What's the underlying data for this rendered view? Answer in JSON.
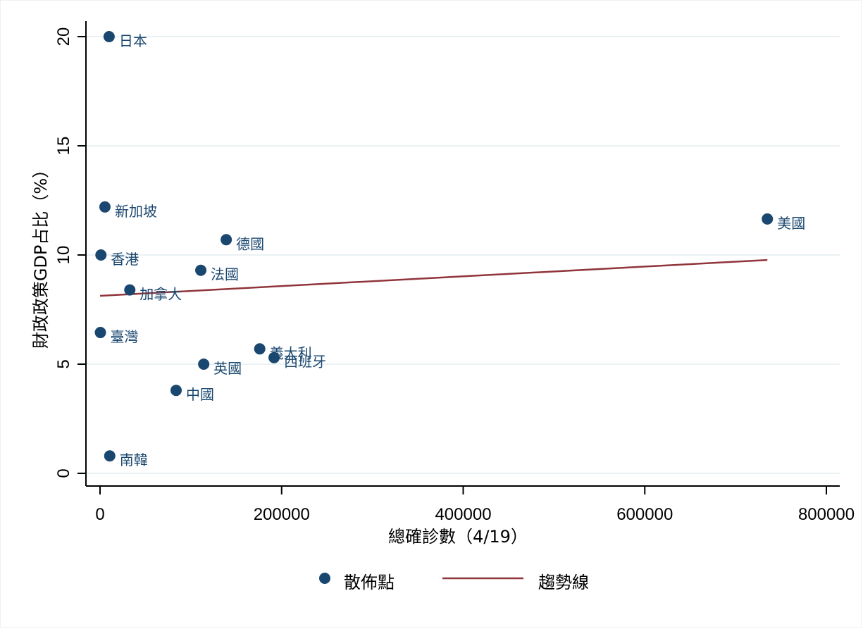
{
  "chart_data": {
    "type": "scatter",
    "title": "",
    "xlabel": "總確診數（4/19）",
    "ylabel": "財政政策GDP占比（%）",
    "xlim": [
      -15000,
      815000
    ],
    "ylim": [
      -0.6,
      20.6
    ],
    "xticks": [
      0,
      200000,
      400000,
      600000,
      800000
    ],
    "xtick_labels": [
      "0",
      "200000",
      "400000",
      "600000",
      "800000"
    ],
    "yticks": [
      0,
      5,
      10,
      15,
      20
    ],
    "ytick_labels": [
      "0",
      "5",
      "10",
      "15",
      "20"
    ],
    "grid": true,
    "legend_position": "bottom",
    "series": [
      {
        "name": "散佈點",
        "type": "scatter",
        "color": "#1a476f",
        "points": [
          {
            "label": "日本",
            "x": 10000,
            "y": 20.0
          },
          {
            "label": "新加坡",
            "x": 5400,
            "y": 12.2
          },
          {
            "label": "德國",
            "x": 139000,
            "y": 10.7
          },
          {
            "label": "香港",
            "x": 1000,
            "y": 10.0
          },
          {
            "label": "法國",
            "x": 111000,
            "y": 9.3
          },
          {
            "label": "加拿大",
            "x": 32800,
            "y": 8.4
          },
          {
            "label": "臺灣",
            "x": 400,
            "y": 6.45
          },
          {
            "label": "義大利",
            "x": 175900,
            "y": 5.7
          },
          {
            "label": "西班牙",
            "x": 191700,
            "y": 5.3
          },
          {
            "label": "英國",
            "x": 114200,
            "y": 5.0
          },
          {
            "label": "中國",
            "x": 83800,
            "y": 3.8
          },
          {
            "label": "南韓",
            "x": 10700,
            "y": 0.8
          },
          {
            "label": "美國",
            "x": 735000,
            "y": 11.65
          }
        ]
      },
      {
        "name": "趨勢線",
        "type": "line",
        "color": "#90353b",
        "x": [
          0,
          735000
        ],
        "y": [
          8.13,
          9.77
        ]
      }
    ]
  },
  "legend": {
    "items": [
      {
        "label": "散佈點",
        "symbol": "circle",
        "color": "#1a476f"
      },
      {
        "label": "趨勢線",
        "symbol": "line",
        "color": "#90353b"
      }
    ]
  }
}
